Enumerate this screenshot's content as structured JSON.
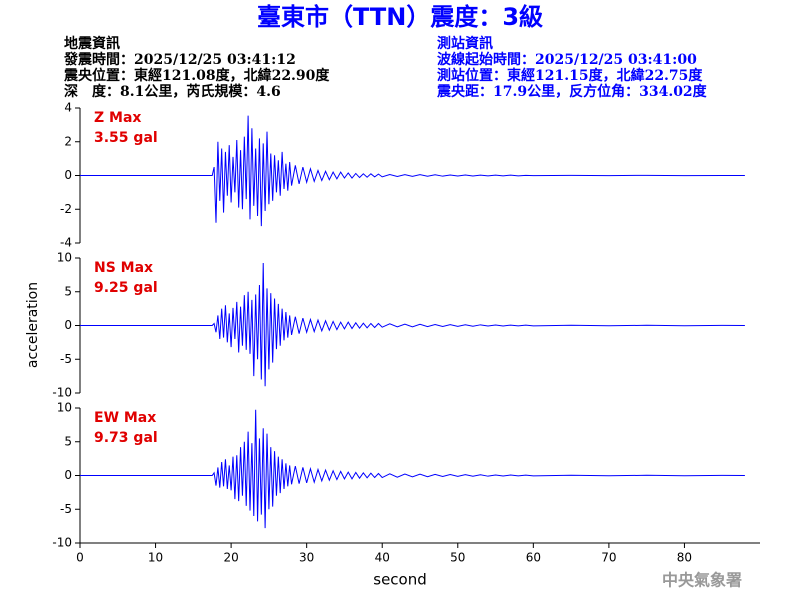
{
  "header": {
    "title": "臺東市（TTN）震度：3級",
    "left": [
      "地震資訊",
      "發震時間：2025/12/25 03:41:12",
      "震央位置：東經121.08度，北緯22.90度",
      "深　度：8.1公里，芮氏規模：4.6"
    ],
    "right": [
      "測站資訊",
      "波線起始時間：2025/12/25 03:41:00",
      "測站位置：東經121.15度，北緯22.75度",
      "震央距：17.9公里，反方位角：334.02度"
    ]
  },
  "ylabel": "acceleration",
  "xlabel": "second",
  "footer": "中央氣象署",
  "chart_data": [
    {
      "type": "line",
      "label": "Z Max",
      "max_label": "3.55 gal",
      "color": "#0000ff",
      "xlim": [
        0,
        90
      ],
      "ylim": [
        -4,
        4
      ],
      "yticks": [
        -4,
        -2,
        0,
        2,
        4
      ],
      "x": [
        0,
        17.5,
        17.75,
        18,
        18.25,
        18.5,
        18.75,
        19,
        19.25,
        19.5,
        19.75,
        20,
        20.25,
        20.5,
        20.75,
        21,
        21.25,
        21.5,
        21.75,
        22,
        22.25,
        22.5,
        22.75,
        23,
        23.25,
        23.5,
        23.75,
        24,
        24.25,
        24.5,
        24.75,
        25,
        25.25,
        25.5,
        25.75,
        26,
        26.25,
        26.5,
        26.75,
        27,
        27.25,
        27.5,
        27.75,
        28,
        28.5,
        29,
        29.5,
        30,
        30.5,
        31,
        31.5,
        32,
        32.5,
        33,
        33.5,
        34,
        34.5,
        35,
        35.5,
        36,
        36.5,
        37,
        37.5,
        38,
        38.5,
        39,
        39.5,
        40,
        41,
        42,
        43,
        44,
        45,
        46,
        47,
        48,
        49,
        50,
        51,
        52,
        53,
        54,
        55,
        56,
        57,
        58,
        59,
        60,
        65,
        70,
        75,
        80,
        85,
        88
      ],
      "values": [
        0,
        0,
        0.5,
        -2.8,
        2.0,
        -1.5,
        1.6,
        -2.2,
        1.4,
        -1.2,
        1.8,
        -1.6,
        1.1,
        -1.0,
        2.1,
        -1.9,
        1.5,
        -2.0,
        2.3,
        -1.4,
        3.55,
        -2.6,
        2.8,
        -1.8,
        1.6,
        -2.4,
        2.2,
        -3.0,
        1.9,
        -2.1,
        2.6,
        -1.7,
        1.3,
        -1.5,
        1.2,
        -1.0,
        0.9,
        -1.2,
        1.4,
        -0.8,
        0.7,
        -0.9,
        0.8,
        -0.6,
        0.6,
        -0.5,
        0.5,
        -0.4,
        0.4,
        -0.35,
        0.3,
        -0.3,
        0.25,
        -0.25,
        0.2,
        -0.2,
        0.2,
        -0.15,
        0.15,
        -0.15,
        0.12,
        -0.12,
        0.1,
        -0.1,
        0.1,
        -0.08,
        0.08,
        -0.08,
        0.06,
        -0.06,
        0.05,
        -0.05,
        0.05,
        -0.04,
        0.04,
        -0.04,
        0.03,
        -0.03,
        0.03,
        -0.03,
        0.02,
        -0.02,
        0.02,
        -0.02,
        0.02,
        -0.02,
        0.01,
        -0.01,
        0.01,
        -0.01,
        0.01,
        -0.01,
        0,
        0
      ]
    },
    {
      "type": "line",
      "label": "NS Max",
      "max_label": "9.25 gal",
      "color": "#0000ff",
      "xlim": [
        0,
        90
      ],
      "ylim": [
        -10,
        10
      ],
      "yticks": [
        -10,
        -5,
        0,
        5,
        10
      ],
      "x": [
        0,
        17.5,
        17.75,
        18,
        18.25,
        18.5,
        18.75,
        19,
        19.25,
        19.5,
        19.75,
        20,
        20.25,
        20.5,
        20.75,
        21,
        21.25,
        21.5,
        21.75,
        22,
        22.25,
        22.5,
        22.75,
        23,
        23.25,
        23.5,
        23.75,
        24,
        24.25,
        24.5,
        24.75,
        25,
        25.25,
        25.5,
        25.75,
        26,
        26.25,
        26.5,
        26.75,
        27,
        27.25,
        27.5,
        27.75,
        28,
        28.5,
        29,
        29.5,
        30,
        30.5,
        31,
        31.5,
        32,
        32.5,
        33,
        33.5,
        34,
        34.5,
        35,
        35.5,
        36,
        36.5,
        37,
        37.5,
        38,
        38.5,
        39,
        39.5,
        40,
        41,
        42,
        43,
        44,
        45,
        46,
        47,
        48,
        49,
        50,
        51,
        52,
        53,
        54,
        55,
        56,
        57,
        58,
        59,
        60,
        65,
        70,
        75,
        80,
        85,
        88
      ],
      "values": [
        0,
        0,
        0.3,
        -1.0,
        1.5,
        -2.0,
        2.5,
        -1.8,
        3.0,
        -2.5,
        1.8,
        -3.2,
        2.6,
        -2.0,
        3.5,
        -4.0,
        2.8,
        -3.0,
        4.5,
        -3.6,
        5.0,
        -4.2,
        3.8,
        -7.5,
        4.6,
        -5.0,
        6.0,
        -8.0,
        9.25,
        -9.0,
        5.5,
        -6.5,
        4.8,
        -5.5,
        4.0,
        -3.5,
        3.2,
        -3.0,
        2.5,
        -2.2,
        2.0,
        -1.8,
        1.5,
        -1.4,
        1.3,
        -1.2,
        1.1,
        -1.0,
        0.9,
        -0.9,
        0.8,
        -0.8,
        0.7,
        -0.7,
        0.6,
        -0.6,
        0.5,
        -0.5,
        0.5,
        -0.45,
        0.4,
        -0.4,
        0.35,
        -0.35,
        0.3,
        -0.3,
        0.3,
        -0.25,
        0.25,
        -0.2,
        0.2,
        -0.2,
        0.18,
        -0.16,
        0.15,
        -0.15,
        0.12,
        -0.12,
        0.1,
        -0.1,
        0.1,
        -0.08,
        0.08,
        -0.08,
        0.06,
        -0.06,
        0.05,
        -0.05,
        0.04,
        -0.04,
        0.03,
        -0.03,
        0.02,
        0
      ]
    },
    {
      "type": "line",
      "label": "EW Max",
      "max_label": "9.73 gal",
      "color": "#0000ff",
      "xlim": [
        0,
        90
      ],
      "ylim": [
        -10,
        10
      ],
      "yticks": [
        -10,
        -5,
        0,
        5,
        10
      ],
      "xticks": [
        0,
        10,
        20,
        30,
        40,
        50,
        60,
        70,
        80
      ],
      "x": [
        0,
        17.5,
        17.75,
        18,
        18.25,
        18.5,
        18.75,
        19,
        19.25,
        19.5,
        19.75,
        20,
        20.25,
        20.5,
        20.75,
        21,
        21.25,
        21.5,
        21.75,
        22,
        22.25,
        22.5,
        22.75,
        23,
        23.25,
        23.5,
        23.75,
        24,
        24.25,
        24.5,
        24.75,
        25,
        25.25,
        25.5,
        25.75,
        26,
        26.25,
        26.5,
        26.75,
        27,
        27.25,
        27.5,
        27.75,
        28,
        28.5,
        29,
        29.5,
        30,
        30.5,
        31,
        31.5,
        32,
        32.5,
        33,
        33.5,
        34,
        34.5,
        35,
        35.5,
        36,
        36.5,
        37,
        37.5,
        38,
        38.5,
        39,
        39.5,
        40,
        41,
        42,
        43,
        44,
        45,
        46,
        47,
        48,
        49,
        50,
        51,
        52,
        53,
        54,
        55,
        56,
        57,
        58,
        59,
        60,
        65,
        70,
        75,
        80,
        85,
        88
      ],
      "values": [
        0,
        0,
        0.4,
        -1.5,
        1.2,
        -1.8,
        2.0,
        -1.6,
        2.4,
        -2.0,
        1.5,
        -2.2,
        2.8,
        -3.5,
        3.0,
        -3.8,
        4.2,
        -3.0,
        5.0,
        -4.5,
        6.5,
        -5.2,
        4.8,
        -6.0,
        9.73,
        -6.8,
        5.5,
        -5.8,
        7.0,
        -7.8,
        6.2,
        -5.0,
        4.2,
        -4.6,
        3.6,
        -3.0,
        2.8,
        -2.6,
        2.4,
        -2.0,
        1.8,
        -1.6,
        1.5,
        -1.3,
        1.4,
        -1.2,
        1.2,
        -1.1,
        1.0,
        -1.0,
        0.9,
        -0.8,
        0.8,
        -0.7,
        0.7,
        -0.6,
        0.6,
        -0.5,
        0.5,
        -0.5,
        0.45,
        -0.4,
        0.4,
        -0.35,
        0.35,
        -0.3,
        0.3,
        -0.3,
        0.25,
        -0.25,
        0.22,
        -0.2,
        0.2,
        -0.18,
        0.16,
        -0.15,
        0.14,
        -0.12,
        0.12,
        -0.1,
        0.1,
        -0.1,
        0.08,
        -0.08,
        0.07,
        -0.06,
        0.06,
        -0.05,
        0.04,
        -0.04,
        0.03,
        -0.03,
        0.02,
        0
      ]
    }
  ]
}
